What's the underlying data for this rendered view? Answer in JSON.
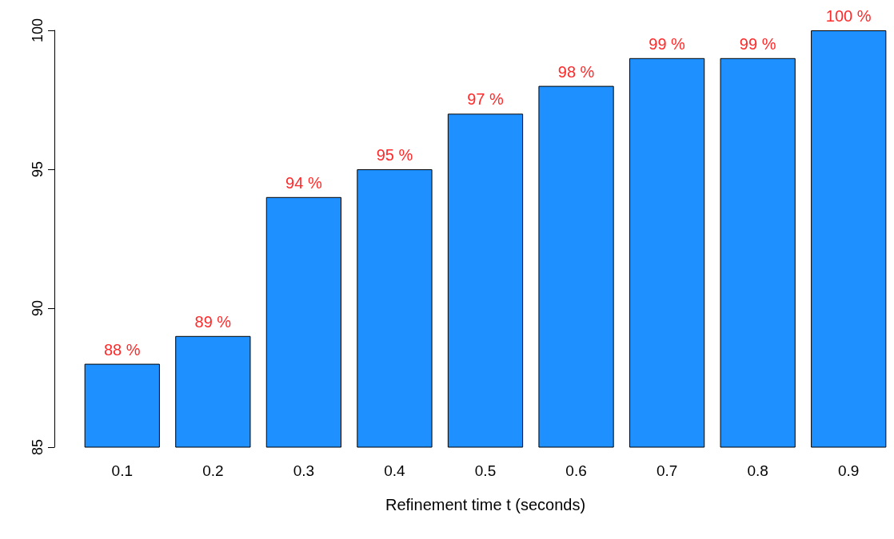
{
  "chart_data": {
    "type": "bar",
    "xlabel": "Refinement time t (seconds)",
    "categories": [
      "0.1",
      "0.2",
      "0.3",
      "0.4",
      "0.5",
      "0.6",
      "0.7",
      "0.8",
      "0.9"
    ],
    "values": [
      88,
      89,
      94,
      95,
      97,
      98,
      99,
      99,
      100
    ],
    "value_labels": [
      "88 %",
      "89 %",
      "94 %",
      "95 %",
      "97 %",
      "98 %",
      "99 %",
      "99 %",
      "100 %"
    ],
    "color": "#1e90ff",
    "ylim": [
      85,
      100
    ],
    "yticks": [
      85,
      90,
      95,
      100
    ],
    "grid": false
  }
}
